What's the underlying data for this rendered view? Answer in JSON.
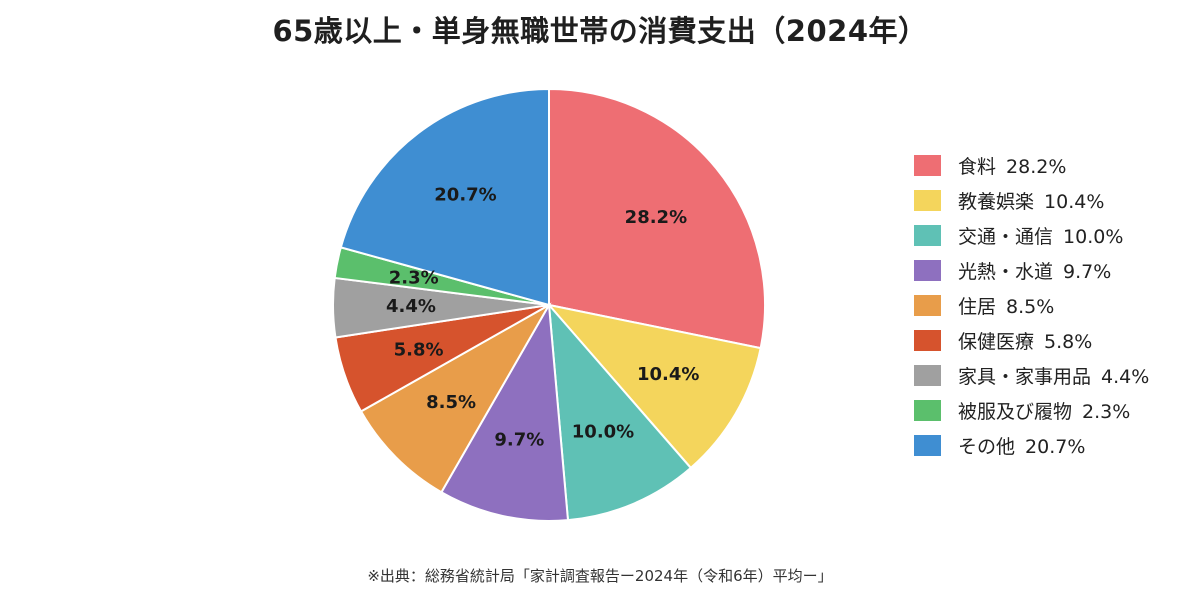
{
  "chart_data": {
    "type": "pie",
    "title": "65歳以上・単身無職世帯の消費支出（2024年）",
    "labels": [
      "食料",
      "教養娯楽",
      "交通・通信",
      "光熱・水道",
      "住居",
      "保健医療",
      "家具・家事用品",
      "被服及び履物",
      "その他"
    ],
    "values": [
      28.2,
      10.4,
      10.0,
      9.7,
      8.5,
      5.8,
      4.4,
      2.3,
      20.7
    ],
    "value_labels": [
      "28.2%",
      "10.4%",
      "10.0%",
      "9.7%",
      "8.5%",
      "5.8%",
      "4.4%",
      "2.3%",
      "20.7%"
    ],
    "colors": [
      "#ee6e73",
      "#f4d55c",
      "#5fc1b5",
      "#8e70bf",
      "#e89d4a",
      "#d6532d",
      "#a0a0a0",
      "#5bbf6c",
      "#3f8ed2"
    ],
    "start_angle": "12 o'clock, clockwise",
    "legend_position": "right"
  },
  "source_note": "※出典：総務省統計局「家計調査報告ー2024年（令和6年）平均ー」"
}
